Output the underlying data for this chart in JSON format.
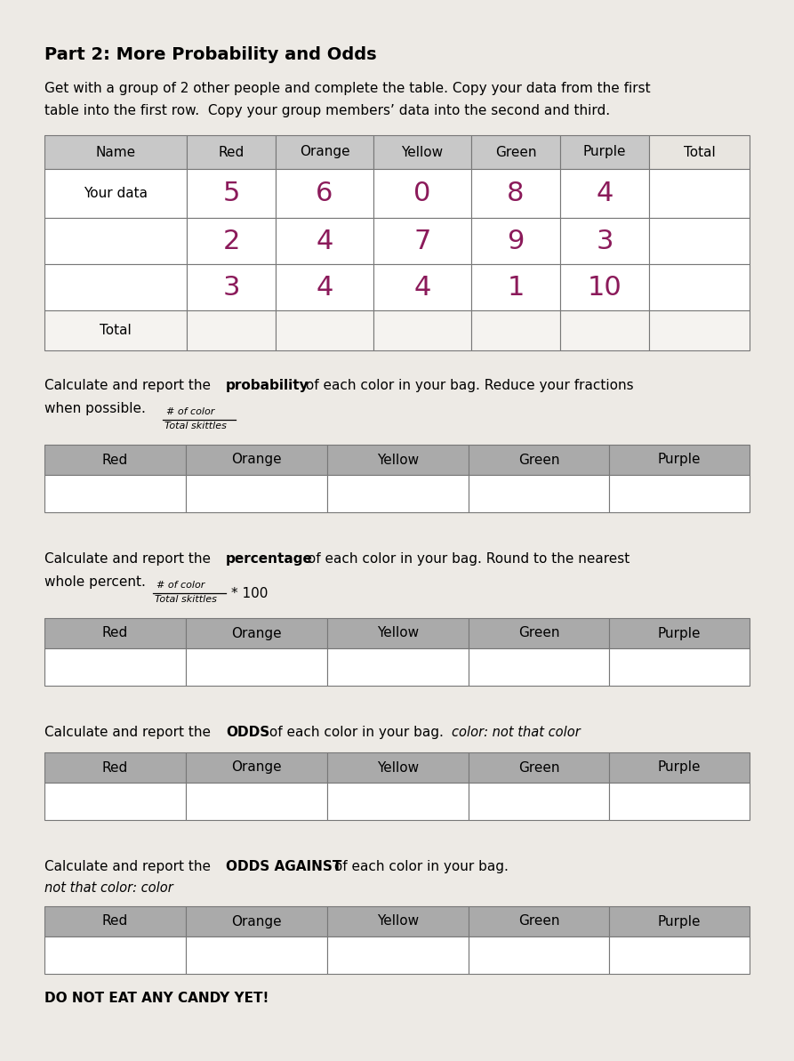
{
  "title": "Part 2: More Probability and Odds",
  "intro_text_line1": "Get with a group of 2 other people and complete the table. Copy your data from the first",
  "intro_text_line2": "table into the first row.  Copy your group members’ data into the second and third.",
  "bg_color": "#edeae5",
  "table1": {
    "headers": [
      "Name",
      "Red",
      "Orange",
      "Yellow",
      "Green",
      "Purple",
      "Total"
    ],
    "rows": [
      [
        "Your data",
        "5",
        "6",
        "0",
        "8",
        "4",
        ""
      ],
      [
        "",
        "2",
        "4",
        "7",
        "9",
        "3",
        ""
      ],
      [
        "",
        "3",
        "4",
        "4",
        "1",
        "10",
        ""
      ],
      [
        "Total",
        "",
        "",
        "",
        "",
        "",
        ""
      ]
    ],
    "header_bg": "#c8c8c8",
    "data_color": "#8B1A5A",
    "cell_bg": "#ffffff",
    "border_color": "#777777"
  },
  "prob_section": {
    "headers": [
      "Red",
      "Orange",
      "Yellow",
      "Green",
      "Purple"
    ],
    "header_bg": "#aaaaaa",
    "cell_bg": "#ffffff"
  },
  "pct_section": {
    "headers": [
      "Red",
      "Orange",
      "Yellow",
      "Green",
      "Purple"
    ],
    "header_bg": "#aaaaaa",
    "cell_bg": "#ffffff"
  },
  "odds_section": {
    "headers": [
      "Red",
      "Orange",
      "Yellow",
      "Green",
      "Purple"
    ],
    "header_bg": "#aaaaaa",
    "cell_bg": "#ffffff"
  },
  "odds_against_section": {
    "headers": [
      "Red",
      "Orange",
      "Yellow",
      "Green",
      "Purple"
    ],
    "header_bg": "#aaaaaa",
    "cell_bg": "#ffffff",
    "footer": "DO NOT EAT ANY CANDY YET!"
  }
}
